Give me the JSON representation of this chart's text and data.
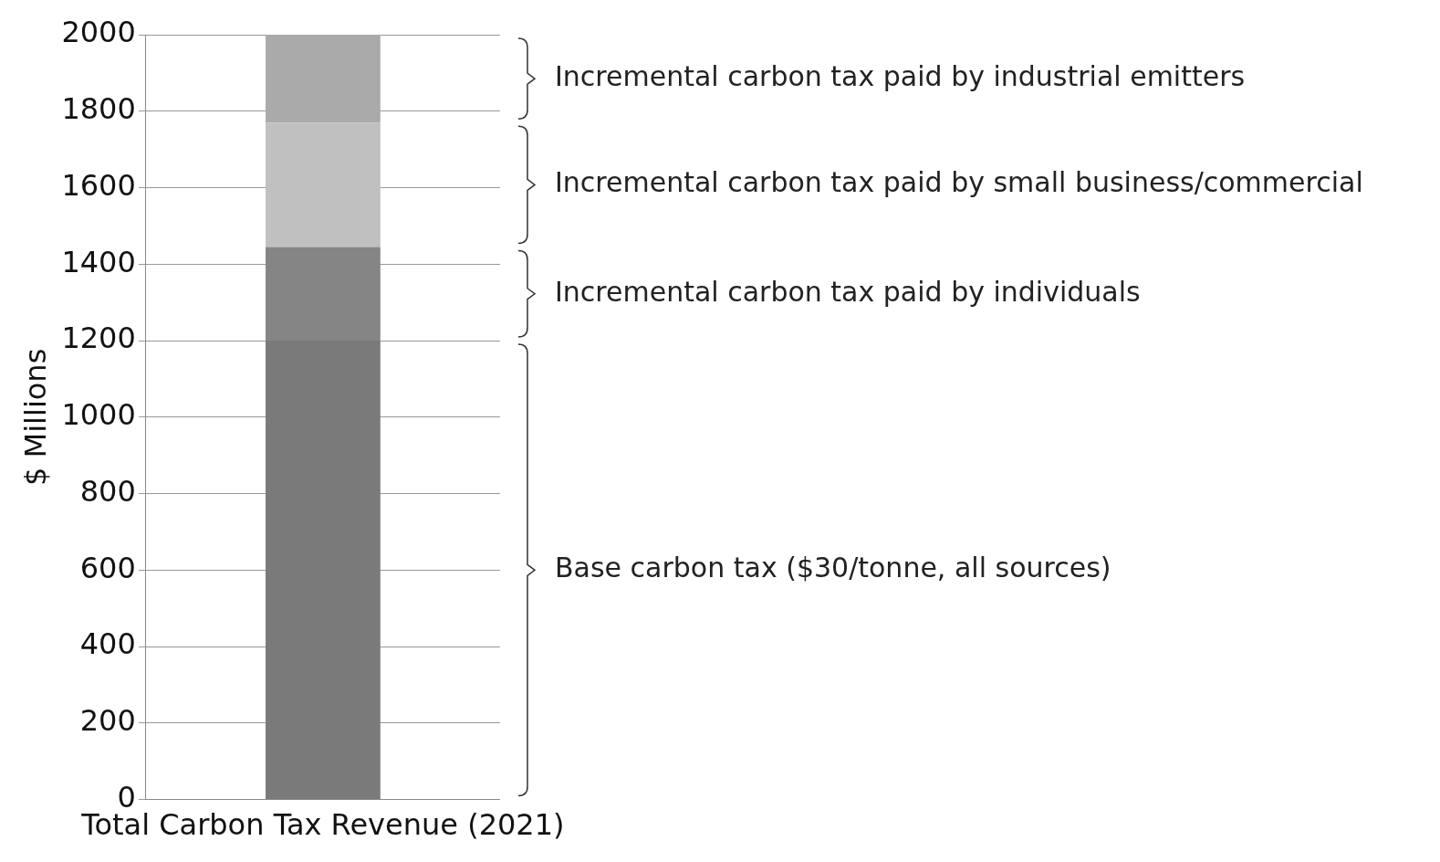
{
  "chart_data": {
    "type": "bar",
    "stacked": true,
    "categories": [
      "Total Carbon Tax Revenue (2021)"
    ],
    "ylabel": "$ Millions",
    "ylim": [
      0,
      2000
    ],
    "yticks": [
      0,
      200,
      400,
      600,
      800,
      1000,
      1200,
      1400,
      1600,
      1800,
      2000
    ],
    "grid": "y",
    "legend": false,
    "series": [
      {
        "name": "Base carbon tax ($30/tonne, all sources)",
        "color": "#7a7a7a",
        "values": [
          1200
        ]
      },
      {
        "name": "Incremental carbon tax paid by individuals",
        "color": "#858585",
        "values": [
          245
        ]
      },
      {
        "name": "Incremental carbon tax paid by small business/commercial",
        "color": "#c0c0c0",
        "values": [
          325
        ]
      },
      {
        "name": "Incremental carbon tax paid by industrial emitters",
        "color": "#aaaaaa",
        "values": [
          230
        ]
      }
    ]
  }
}
